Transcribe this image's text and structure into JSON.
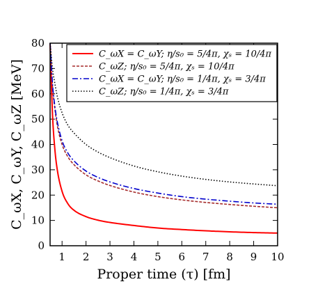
{
  "chart_data": {
    "type": "line",
    "xlabel": "Proper time (τ) [fm]",
    "ylabel": "C_ωX, C_ωY, C_ωZ [MeV]",
    "xlim": [
      0.5,
      10
    ],
    "ylim": [
      0,
      80
    ],
    "xticks": [
      1,
      2,
      3,
      4,
      5,
      6,
      7,
      8,
      9,
      10
    ],
    "yticks": [
      0,
      10,
      20,
      30,
      40,
      50,
      60,
      70,
      80
    ],
    "grid": false,
    "legend_position": "top-right",
    "series": [
      {
        "name": "C_ωX = C_ωY;  η/s₀ = 5/4π, χₛ = 10/4π",
        "color": "#ff0000",
        "dash": "solid",
        "x": [
          0.5,
          0.6,
          0.7,
          0.8,
          1,
          1.25,
          1.5,
          2,
          2.5,
          3,
          4,
          5,
          6,
          7,
          8,
          9,
          10
        ],
        "y": [
          80,
          52,
          38,
          30,
          21.5,
          16.5,
          14,
          11.5,
          10.1,
          9.2,
          8,
          7,
          6.4,
          5.9,
          5.5,
          5.2,
          5
        ]
      },
      {
        "name": "C_ωZ;  η/s₀ = 5/4π, χₛ = 10/4π",
        "color": "#a52a2a",
        "dash": "dashed",
        "x": [
          0.5,
          0.6,
          0.7,
          0.8,
          1,
          1.25,
          1.5,
          2,
          2.5,
          3,
          4,
          5,
          6,
          7,
          8,
          9,
          10
        ],
        "y": [
          80,
          63,
          54,
          47.5,
          40,
          35,
          32,
          28,
          25.6,
          23.8,
          21.2,
          19.4,
          18.1,
          17.1,
          16.3,
          15.6,
          15
        ]
      },
      {
        "name": "C_ωX = C_ωY;  η/s₀ = 1/4π, χₛ = 3/4π",
        "color": "#0000cc",
        "dash": "dashdot",
        "x": [
          0.5,
          0.6,
          0.7,
          0.8,
          1,
          1.25,
          1.5,
          2,
          2.5,
          3,
          4,
          5,
          6,
          7,
          8,
          9,
          10
        ],
        "y": [
          80,
          64,
          55,
          49,
          41.5,
          36.5,
          33.5,
          29.5,
          27,
          25.2,
          22.6,
          20.8,
          19.4,
          18.4,
          17.6,
          16.9,
          16.4
        ]
      },
      {
        "name": "C_ωZ;  η/s₀ = 1/4π, χₛ = 3/4π",
        "color": "#000000",
        "dash": "dotted",
        "x": [
          0.5,
          0.6,
          0.7,
          0.8,
          1,
          1.25,
          1.5,
          2,
          2.5,
          3,
          4,
          5,
          6,
          7,
          8,
          9,
          10
        ],
        "y": [
          80,
          70,
          64,
          59,
          52.5,
          47.5,
          44.5,
          40,
          37,
          34.8,
          31.5,
          29.2,
          27.5,
          26.2,
          25.2,
          24.4,
          23.7
        ]
      }
    ]
  }
}
